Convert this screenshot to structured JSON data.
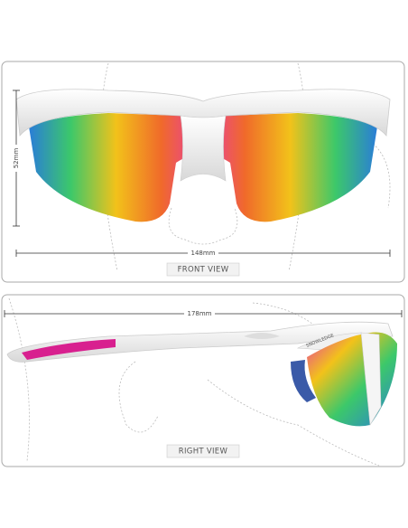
{
  "front": {
    "height_label": "52mm",
    "width_label": "148mm",
    "caption": "FRONT VIEW"
  },
  "side": {
    "length_label": "178mm",
    "brand": "SNOWLEDGE",
    "caption": "RIGHT VIEW"
  }
}
